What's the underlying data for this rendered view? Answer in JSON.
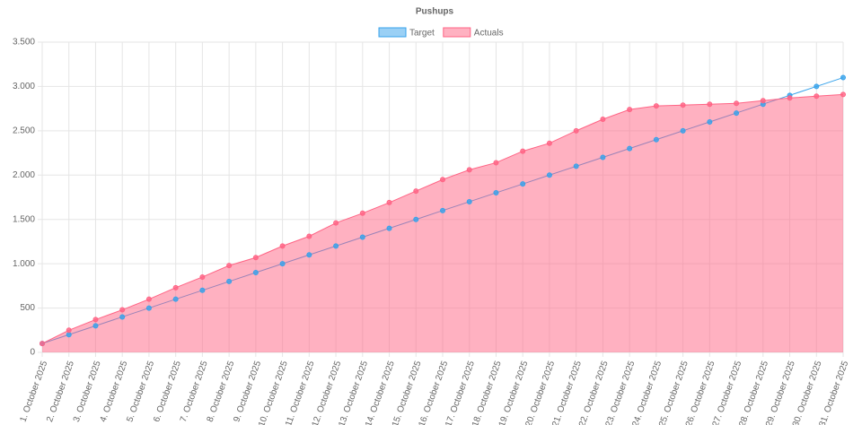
{
  "chart_data": {
    "type": "line",
    "title": "Pushups",
    "categories": [
      "1. October 2025",
      "2. October 2025",
      "3. October 2025",
      "4. October 2025",
      "5. October 2025",
      "6. October 2025",
      "7. October 2025",
      "8. October 2025",
      "9. October 2025",
      "10. October 2025",
      "11. October 2025",
      "12. October 2025",
      "13. October 2025",
      "14. October 2025",
      "15. October 2025",
      "16. October 2025",
      "17. October 2025",
      "18. October 2025",
      "19. October 2025",
      "20. October 2025",
      "21. October 2025",
      "22. October 2025",
      "23. October 2025",
      "24. October 2025",
      "25. October 2025",
      "26. October 2025",
      "27. October 2025",
      "28. October 2025",
      "29. October 2025",
      "30. October 2025",
      "31. October 2025"
    ],
    "series": [
      {
        "name": "Target",
        "color": "#36a2eb",
        "fill": false,
        "values": [
          100,
          200,
          300,
          400,
          500,
          600,
          700,
          800,
          900,
          1000,
          1100,
          1200,
          1300,
          1400,
          1500,
          1600,
          1700,
          1800,
          1900,
          2000,
          2100,
          2200,
          2300,
          2400,
          2500,
          2600,
          2700,
          2800,
          2900,
          3000,
          3100
        ]
      },
      {
        "name": "Actuals",
        "color": "#ff6384",
        "fill": true,
        "values": [
          100,
          250,
          370,
          480,
          600,
          730,
          850,
          980,
          1070,
          1200,
          1310,
          1460,
          1570,
          1690,
          1820,
          1950,
          2060,
          2140,
          2270,
          2360,
          2500,
          2630,
          2740,
          2780,
          2790,
          2800,
          2810,
          2840,
          2870,
          2890,
          2910
        ]
      }
    ],
    "ylim": [
      0,
      3500
    ],
    "yticks": [
      0,
      {
        "value": 500,
        "label": "500"
      },
      {
        "value": 1000,
        "label": "1.000"
      },
      {
        "value": 1500,
        "label": "1.500"
      },
      {
        "value": 2000,
        "label": "2.000"
      },
      {
        "value": 2500,
        "label": "2.500"
      },
      {
        "value": 3000,
        "label": "3.000"
      },
      {
        "value": 3500,
        "label": "3.500"
      }
    ],
    "grid": true
  }
}
